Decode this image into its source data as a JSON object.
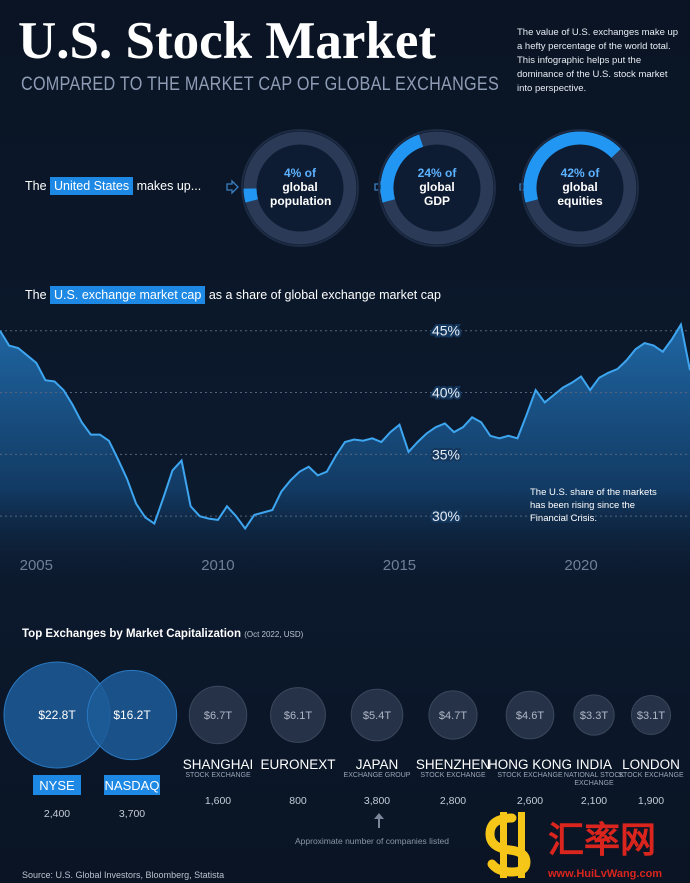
{
  "header": {
    "title": "U.S. Stock Market",
    "subtitle": "COMPARED TO THE MARKET CAP OF GLOBAL EXCHANGES",
    "description": "The value of U.S. exchanges make up a hefty percentage of the world total. This infographic helps put the dominance of the U.S. stock market into perspective."
  },
  "chart_data": [
    {
      "type": "donut",
      "title_prefix": "The",
      "title_highlight": "United States",
      "title_suffix": "makes up...",
      "connector": "of",
      "categories": [
        "global population",
        "global GDP",
        "global equities"
      ],
      "values": [
        4,
        24,
        42
      ],
      "value_labels": [
        "4%",
        "24%",
        "42%"
      ],
      "color": "#2196f3",
      "track_color": "#2b3b57"
    },
    {
      "type": "area",
      "title_prefix": "The",
      "title_highlight": "U.S. exchange market cap",
      "title_suffix": "as a share of global exchange market cap",
      "x": [
        2004,
        2004.25,
        2004.5,
        2004.75,
        2005,
        2005.25,
        2005.5,
        2005.75,
        2006,
        2006.25,
        2006.5,
        2006.75,
        2007,
        2007.25,
        2007.5,
        2007.75,
        2008,
        2008.25,
        2008.5,
        2008.75,
        2009,
        2009.25,
        2009.5,
        2009.75,
        2010,
        2010.25,
        2010.5,
        2010.75,
        2011,
        2011.25,
        2011.5,
        2011.75,
        2012,
        2012.25,
        2012.5,
        2012.75,
        2013,
        2013.25,
        2013.5,
        2013.75,
        2014,
        2014.25,
        2014.5,
        2014.75,
        2015,
        2015.25,
        2015.5,
        2015.75,
        2016,
        2016.25,
        2016.5,
        2016.75,
        2017,
        2017.25,
        2017.5,
        2017.75,
        2018,
        2018.25,
        2018.5,
        2018.75,
        2019,
        2019.25,
        2019.5,
        2019.75,
        2020,
        2020.25,
        2020.5,
        2020.75,
        2021,
        2021.25,
        2021.5,
        2021.75,
        2022,
        2022.25,
        2022.5,
        2022.75,
        2023
      ],
      "values": [
        45.0,
        43.8,
        43.6,
        43.0,
        42.4,
        41.0,
        40.9,
        40.2,
        39.0,
        37.6,
        36.6,
        36.6,
        36.1,
        34.6,
        33.0,
        31.0,
        29.9,
        29.4,
        31.5,
        33.7,
        34.5,
        30.8,
        30.0,
        29.8,
        29.7,
        30.8,
        30.0,
        29.0,
        30.1,
        30.3,
        30.5,
        32.0,
        32.9,
        33.6,
        34.0,
        33.3,
        33.6,
        34.9,
        36.0,
        36.2,
        36.1,
        36.3,
        36.0,
        36.8,
        37.4,
        35.2,
        36.0,
        36.7,
        37.2,
        37.5,
        36.8,
        37.2,
        38.0,
        37.6,
        36.5,
        36.3,
        36.5,
        36.3,
        38.2,
        40.2,
        39.2,
        39.8,
        40.4,
        40.8,
        41.3,
        40.2,
        41.2,
        41.6,
        41.9,
        42.6,
        43.5,
        44.0,
        43.8,
        43.3,
        44.3,
        45.5,
        41.8
      ],
      "xlim": [
        2004,
        2023
      ],
      "ylim": [
        25,
        47
      ],
      "xticks": [
        2005,
        2010,
        2015,
        2020
      ],
      "yticks": [
        {
          "value": 30,
          "label": "30%"
        },
        {
          "value": 35,
          "label": "35%"
        },
        {
          "value": 40,
          "label": "40%"
        },
        {
          "value": 45,
          "label": "45%"
        }
      ],
      "grid": true,
      "color": "#3ea6f0",
      "annotation": "The U.S. share of the markets has been rising since the Financial Crisis."
    },
    {
      "type": "bubble",
      "title": "Top Exchanges by Market Capitalization",
      "title_note": "(Oct 2022, USD)",
      "categories": [
        "NYSE",
        "NASDAQ",
        "SHANGHAI",
        "EURONEXT",
        "JAPAN",
        "SHENZHEN",
        "HONG KONG",
        "INDIA",
        "LONDON"
      ],
      "descriptors": [
        null,
        null,
        "STOCK EXCHANGE",
        null,
        "EXCHANGE GROUP",
        "STOCK EXCHANGE",
        "STOCK EXCHANGE",
        "NATIONAL STOCK EXCHANGE",
        "STOCK EXCHANGE"
      ],
      "values": [
        22.8,
        16.2,
        6.7,
        6.1,
        5.4,
        4.7,
        4.6,
        3.3,
        3.1
      ],
      "value_labels": [
        "$22.8T",
        "$16.2T",
        "$6.7T",
        "$6.1T",
        "$5.4T",
        "$4.7T",
        "$4.6T",
        "$3.3T",
        "$3.1T"
      ],
      "colors": [
        "#1d5c99",
        "#1d5c99",
        "#253247",
        "#253247",
        "#253247",
        "#253247",
        "#253247",
        "#253247",
        "#253247"
      ],
      "companies": {
        "values": [
          2400,
          3700,
          1600,
          800,
          3800,
          2800,
          2600,
          2100,
          1900
        ],
        "value_labels": [
          "2,400",
          "3,700",
          "1,600",
          "800",
          "3,800",
          "2,800",
          "2,600",
          "2,100",
          "1,900"
        ]
      },
      "footnote": "Approximate number of companies listed"
    }
  ],
  "source": "Source: U.S. Global Investors, Bloomberg, Statista",
  "watermark": {
    "text": "汇率网",
    "url": "www.HuiLvWang.com"
  }
}
